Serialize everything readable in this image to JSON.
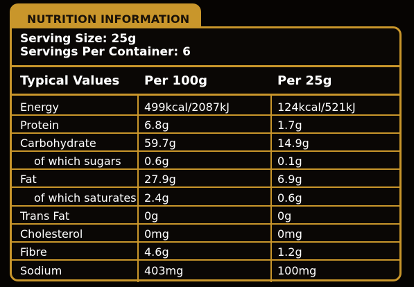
{
  "header": {
    "title": "NUTRITION INFORMATION"
  },
  "serving": {
    "size": "Serving Size: 25g",
    "per_container": "Servings Per Container: 6"
  },
  "table": {
    "columns": [
      "Typical Values",
      "Per 100g",
      "Per 25g"
    ],
    "rows": [
      {
        "name": "Energy",
        "per100": "499kcal/2087kJ",
        "per25": "124kcal/521kJ"
      },
      {
        "name": "Protein",
        "per100": "6.8g",
        "per25": "1.7g"
      },
      {
        "name": "Carbohydrate",
        "per100": "59.7g",
        "per25": "14.9g"
      },
      {
        "name": "of which sugars",
        "per100": "0.6g",
        "per25": "0.1g"
      },
      {
        "name": "Fat",
        "per100": "27.9g",
        "per25": "6.9g"
      },
      {
        "name": "of which saturates",
        "per100": "2.4g",
        "per25": "0.6g"
      },
      {
        "name": "Trans Fat",
        "per100": "0g",
        "per25": "0g"
      },
      {
        "name": "Cholesterol",
        "per100": "0mg",
        "per25": "0mg"
      },
      {
        "name": "Fibre",
        "per100": "4.6g",
        "per25": "1.2g"
      },
      {
        "name": "Sodium",
        "per100": "403mg",
        "per25": "100mg"
      }
    ]
  },
  "colors": {
    "accent": "#c9962b",
    "background": "#060402",
    "text": "#ffffff"
  }
}
